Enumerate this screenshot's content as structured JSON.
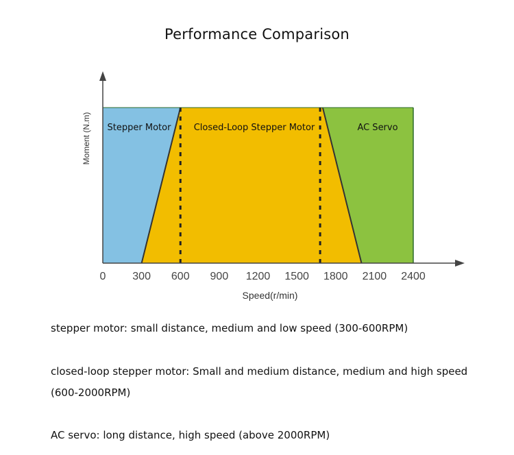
{
  "title": "Performance Comparison",
  "chart_data": {
    "type": "area",
    "xlabel": "Speed(r/min)",
    "ylabel": "Moment (N.m)",
    "xlim": [
      0,
      2400
    ],
    "x_ticks": [
      0,
      300,
      600,
      900,
      1200,
      1500,
      1800,
      2100,
      2400
    ],
    "grid": false,
    "regions": [
      {
        "name": "Stepper Motor",
        "color": "#84c1e3",
        "polygon": [
          [
            0,
            0
          ],
          [
            300,
            0
          ],
          [
            600,
            1
          ],
          [
            0,
            1
          ]
        ]
      },
      {
        "name": "Closed-Loop Stepper Motor",
        "color": "#f2bd00",
        "polygon": [
          [
            300,
            0
          ],
          [
            2000,
            0
          ],
          [
            1700,
            1
          ],
          [
            600,
            1
          ]
        ]
      },
      {
        "name": "AC Servo",
        "color": "#8cc240",
        "polygon": [
          [
            1700,
            1
          ],
          [
            2400,
            1
          ],
          [
            2400,
            0
          ],
          [
            2000,
            0
          ]
        ]
      }
    ],
    "dashed_lines_x": [
      600,
      1680
    ]
  },
  "descriptions": [
    "stepper motor: small distance, medium and low speed (300-600RPM)",
    "closed-loop stepper motor: Small and medium distance, medium and high speed (600-2000RPM)",
    "AC servo: long distance, high speed (above 2000RPM)"
  ]
}
